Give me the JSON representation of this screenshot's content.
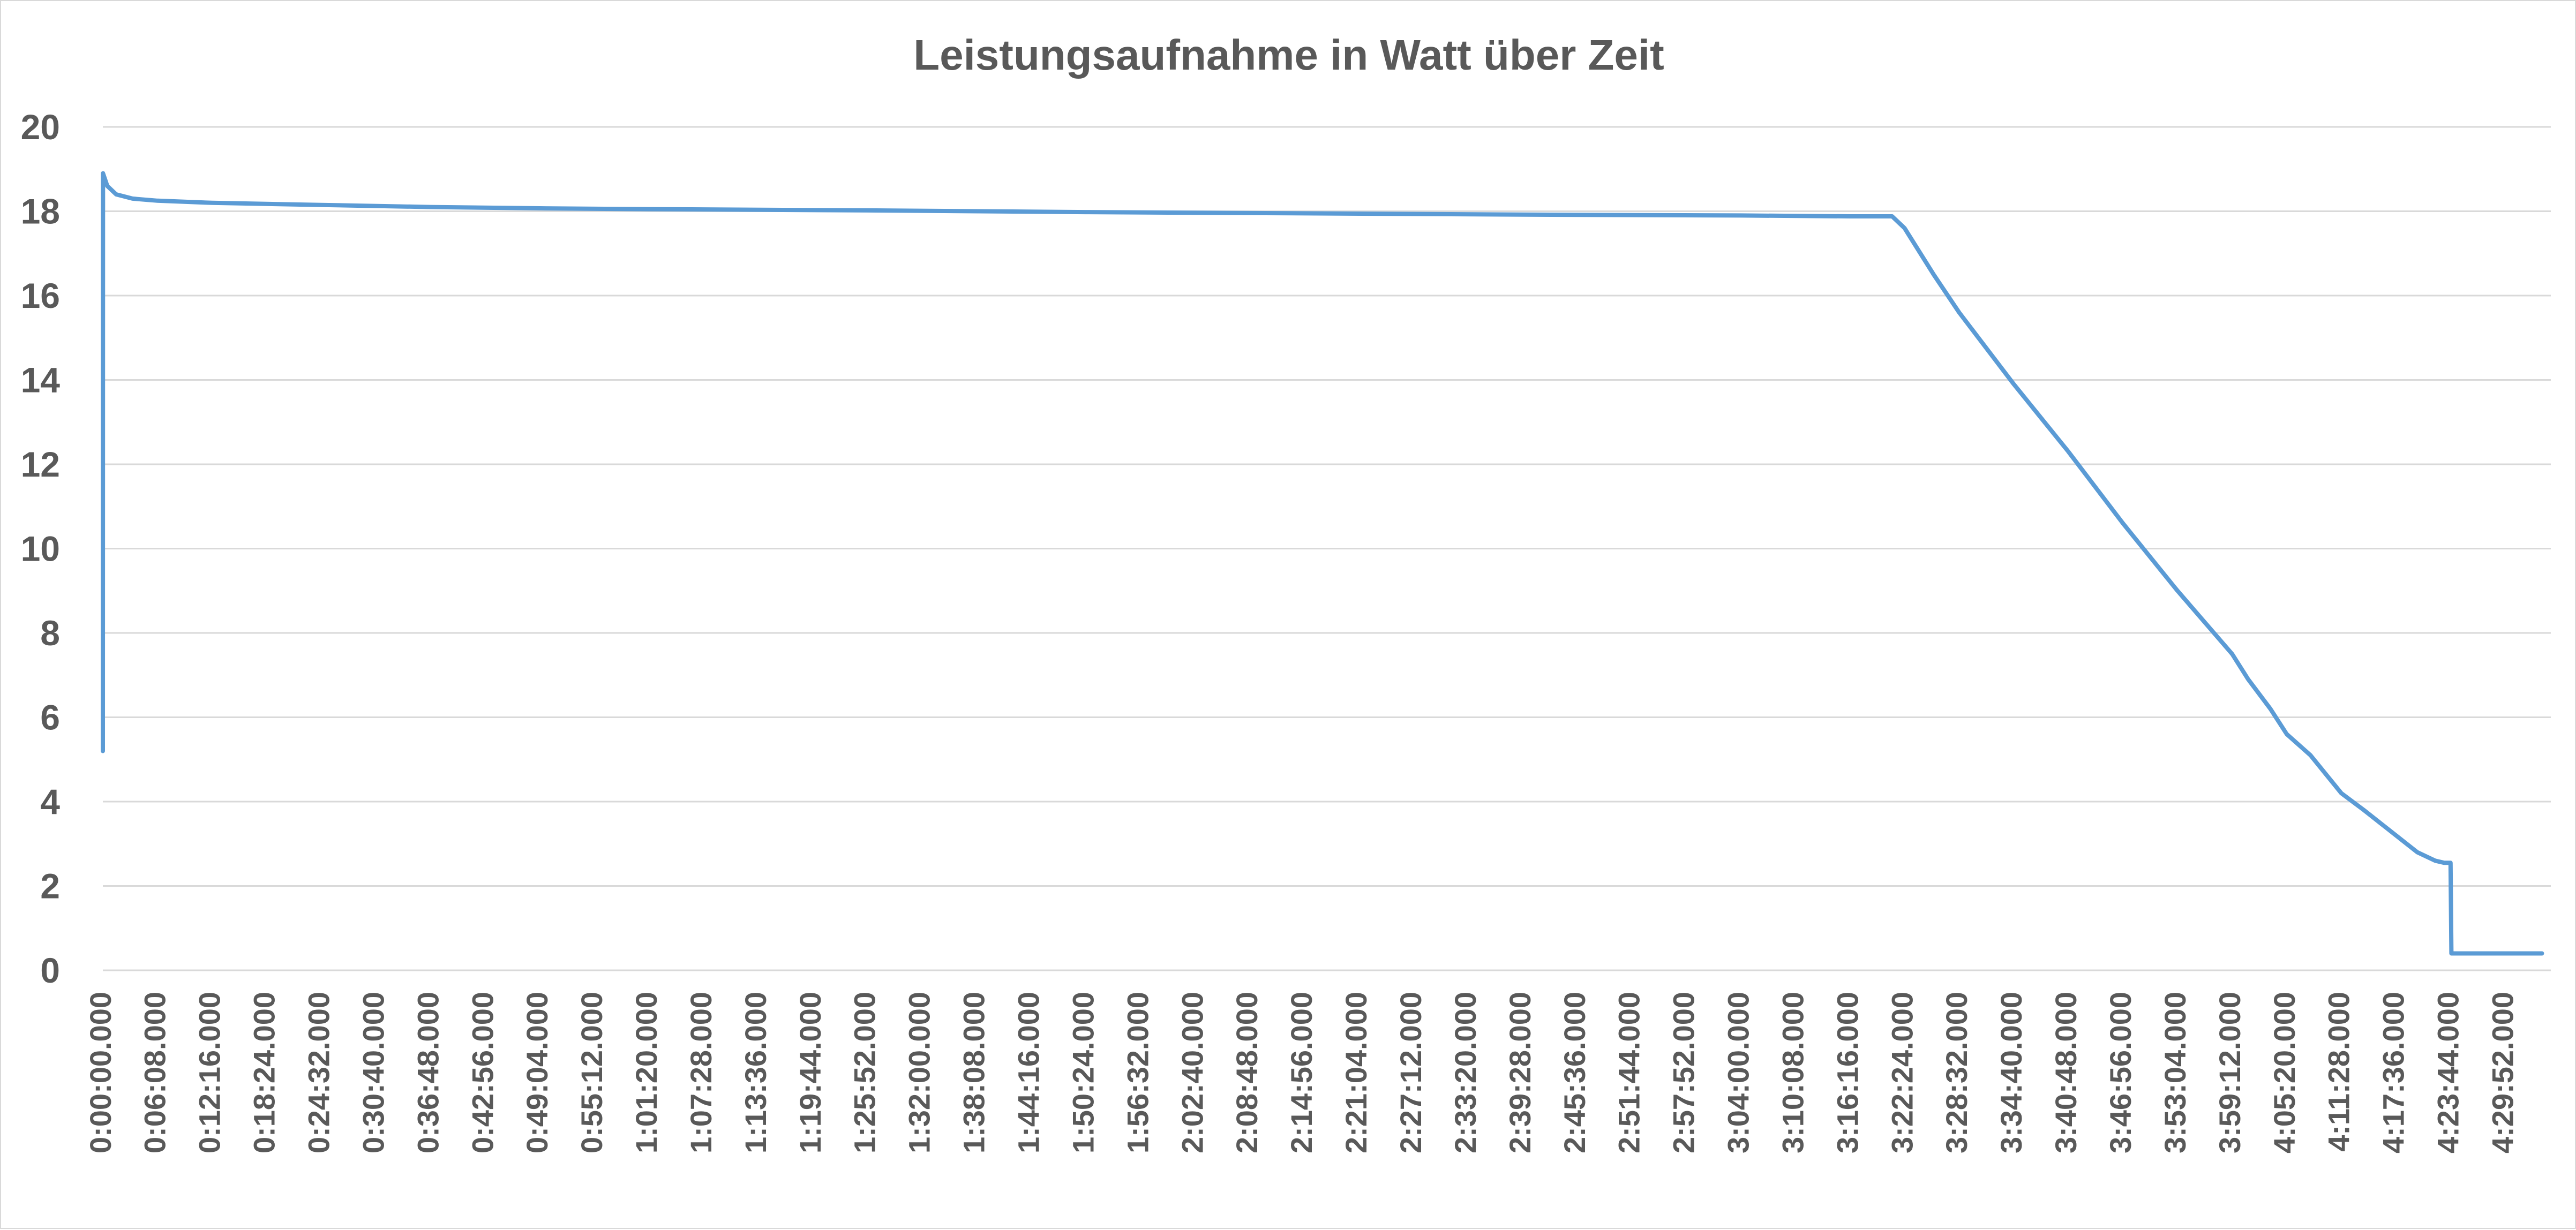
{
  "chart_data": {
    "type": "line",
    "title": "Leistungsaufnahme in Watt über Zeit",
    "xlabel": "",
    "ylabel": "",
    "ylim": [
      0,
      20
    ],
    "y_ticks": [
      "0",
      "2",
      "4",
      "6",
      "8",
      "10",
      "12",
      "14",
      "16",
      "18",
      "20"
    ],
    "x_range_seconds": [
      0,
      16500
    ],
    "x_tick_labels": [
      "0:00:00.000",
      "0:06:08.000",
      "0:12:16.000",
      "0:18:24.000",
      "0:24:32.000",
      "0:30:40.000",
      "0:36:48.000",
      "0:42:56.000",
      "0:49:04.000",
      "0:55:12.000",
      "1:01:20.000",
      "1:07:28.000",
      "1:13:36.000",
      "1:19:44.000",
      "1:25:52.000",
      "1:32:00.000",
      "1:38:08.000",
      "1:44:16.000",
      "1:50:24.000",
      "1:56:32.000",
      "2:02:40.000",
      "2:08:48.000",
      "2:14:56.000",
      "2:21:04.000",
      "2:27:12.000",
      "2:33:20.000",
      "2:39:28.000",
      "2:45:36.000",
      "2:51:44.000",
      "2:57:52.000",
      "3:04:00.000",
      "3:10:08.000",
      "3:16:16.000",
      "3:22:24.000",
      "3:28:32.000",
      "3:34:40.000",
      "3:40:48.000",
      "3:46:56.000",
      "3:53:04.000",
      "3:59:12.000",
      "4:05:20.000",
      "4:11:28.000",
      "4:17:36.000",
      "4:23:44.000",
      "4:29:52.000"
    ],
    "grid": true,
    "legend": "none",
    "series": [
      {
        "color": "#5b9bd5",
        "points": [
          {
            "t": "0:00:00",
            "y": 5.2
          },
          {
            "t": "0:00:01",
            "y": 18.9
          },
          {
            "t": "0:00:30",
            "y": 18.6
          },
          {
            "t": "0:01:30",
            "y": 18.4
          },
          {
            "t": "0:03:20",
            "y": 18.3
          },
          {
            "t": "0:06:08",
            "y": 18.25
          },
          {
            "t": "0:12:16",
            "y": 18.2
          },
          {
            "t": "0:24:32",
            "y": 18.15
          },
          {
            "t": "0:36:48",
            "y": 18.1
          },
          {
            "t": "0:49:04",
            "y": 18.07
          },
          {
            "t": "1:01:20",
            "y": 18.05
          },
          {
            "t": "1:25:52",
            "y": 18.02
          },
          {
            "t": "1:50:24",
            "y": 17.98
          },
          {
            "t": "2:14:56",
            "y": 17.95
          },
          {
            "t": "2:39:28",
            "y": 17.92
          },
          {
            "t": "3:04:00",
            "y": 17.9
          },
          {
            "t": "3:16:16",
            "y": 17.88
          },
          {
            "t": "3:21:00",
            "y": 17.88
          },
          {
            "t": "3:22:24",
            "y": 17.6
          },
          {
            "t": "3:25:40",
            "y": 16.5
          },
          {
            "t": "3:28:32",
            "y": 15.6
          },
          {
            "t": "3:34:40",
            "y": 13.9
          },
          {
            "t": "3:40:48",
            "y": 12.3
          },
          {
            "t": "3:46:56",
            "y": 10.6
          },
          {
            "t": "3:53:04",
            "y": 9.0
          },
          {
            "t": "3:59:12",
            "y": 7.5
          },
          {
            "t": "4:01:00",
            "y": 6.9
          },
          {
            "t": "4:03:30",
            "y": 6.2
          },
          {
            "t": "4:05:20",
            "y": 5.6
          },
          {
            "t": "4:08:00",
            "y": 5.1
          },
          {
            "t": "4:11:28",
            "y": 4.2
          },
          {
            "t": "4:14:00",
            "y": 3.8
          },
          {
            "t": "4:17:36",
            "y": 3.2
          },
          {
            "t": "4:20:00",
            "y": 2.8
          },
          {
            "t": "4:22:00",
            "y": 2.6
          },
          {
            "t": "4:23:00",
            "y": 2.55
          },
          {
            "t": "4:23:44",
            "y": 2.55
          },
          {
            "t": "4:23:50",
            "y": 0.4
          },
          {
            "t": "4:29:52",
            "y": 0.4
          },
          {
            "t": "4:34:00",
            "y": 0.4
          }
        ]
      }
    ]
  }
}
